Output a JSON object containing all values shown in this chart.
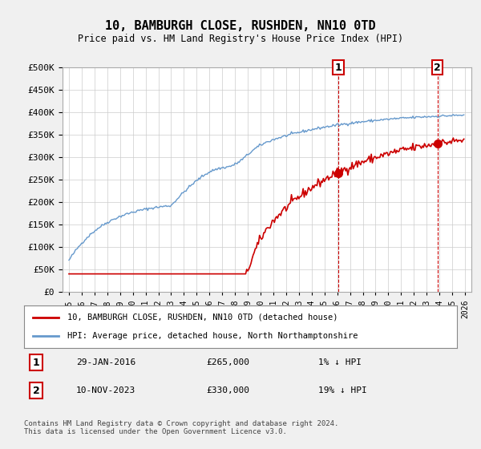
{
  "title": "10, BAMBURGH CLOSE, RUSHDEN, NN10 0TD",
  "subtitle": "Price paid vs. HM Land Registry's House Price Index (HPI)",
  "legend_line1": "10, BAMBURGH CLOSE, RUSHDEN, NN10 0TD (detached house)",
  "legend_line2": "HPI: Average price, detached house, North Northamptonshire",
  "annotation1_date": "29-JAN-2016",
  "annotation1_price": "£265,000",
  "annotation1_hpi": "1% ↓ HPI",
  "annotation2_date": "10-NOV-2023",
  "annotation2_price": "£330,000",
  "annotation2_hpi": "19% ↓ HPI",
  "footer": "Contains HM Land Registry data © Crown copyright and database right 2024.\nThis data is licensed under the Open Government Licence v3.0.",
  "hpi_color": "#6699cc",
  "price_color": "#cc0000",
  "marker_color": "#cc0000",
  "vline_color": "#cc0000",
  "annotation_box_color": "#cc0000",
  "bg_color": "#f0f0f0",
  "plot_bg_color": "#ffffff",
  "grid_color": "#cccccc",
  "ylim": [
    0,
    500000
  ],
  "yticks": [
    0,
    50000,
    100000,
    150000,
    200000,
    250000,
    300000,
    350000,
    400000,
    450000,
    500000
  ],
  "x_start_year": 1995,
  "x_end_year": 2026
}
